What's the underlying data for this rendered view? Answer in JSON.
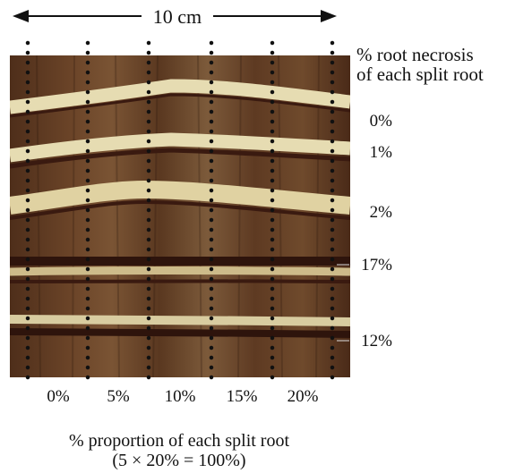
{
  "scale_bar": {
    "label": "10 cm"
  },
  "right_heading": {
    "line1": "% root necrosis",
    "line2": "of each split root"
  },
  "root_necrosis": [
    "0%",
    "1%",
    "2%",
    "17%",
    "12%"
  ],
  "proportions": [
    "0%",
    "5%",
    "10%",
    "15%",
    "20%"
  ],
  "caption": {
    "line1": "% proportion of each split root",
    "line2": "(5 × 20% = 100%)"
  },
  "colors": {
    "bark": "#6b4428",
    "root": "#e6dcb2",
    "necrosis": "#3a1a10",
    "dots": "#111111"
  }
}
